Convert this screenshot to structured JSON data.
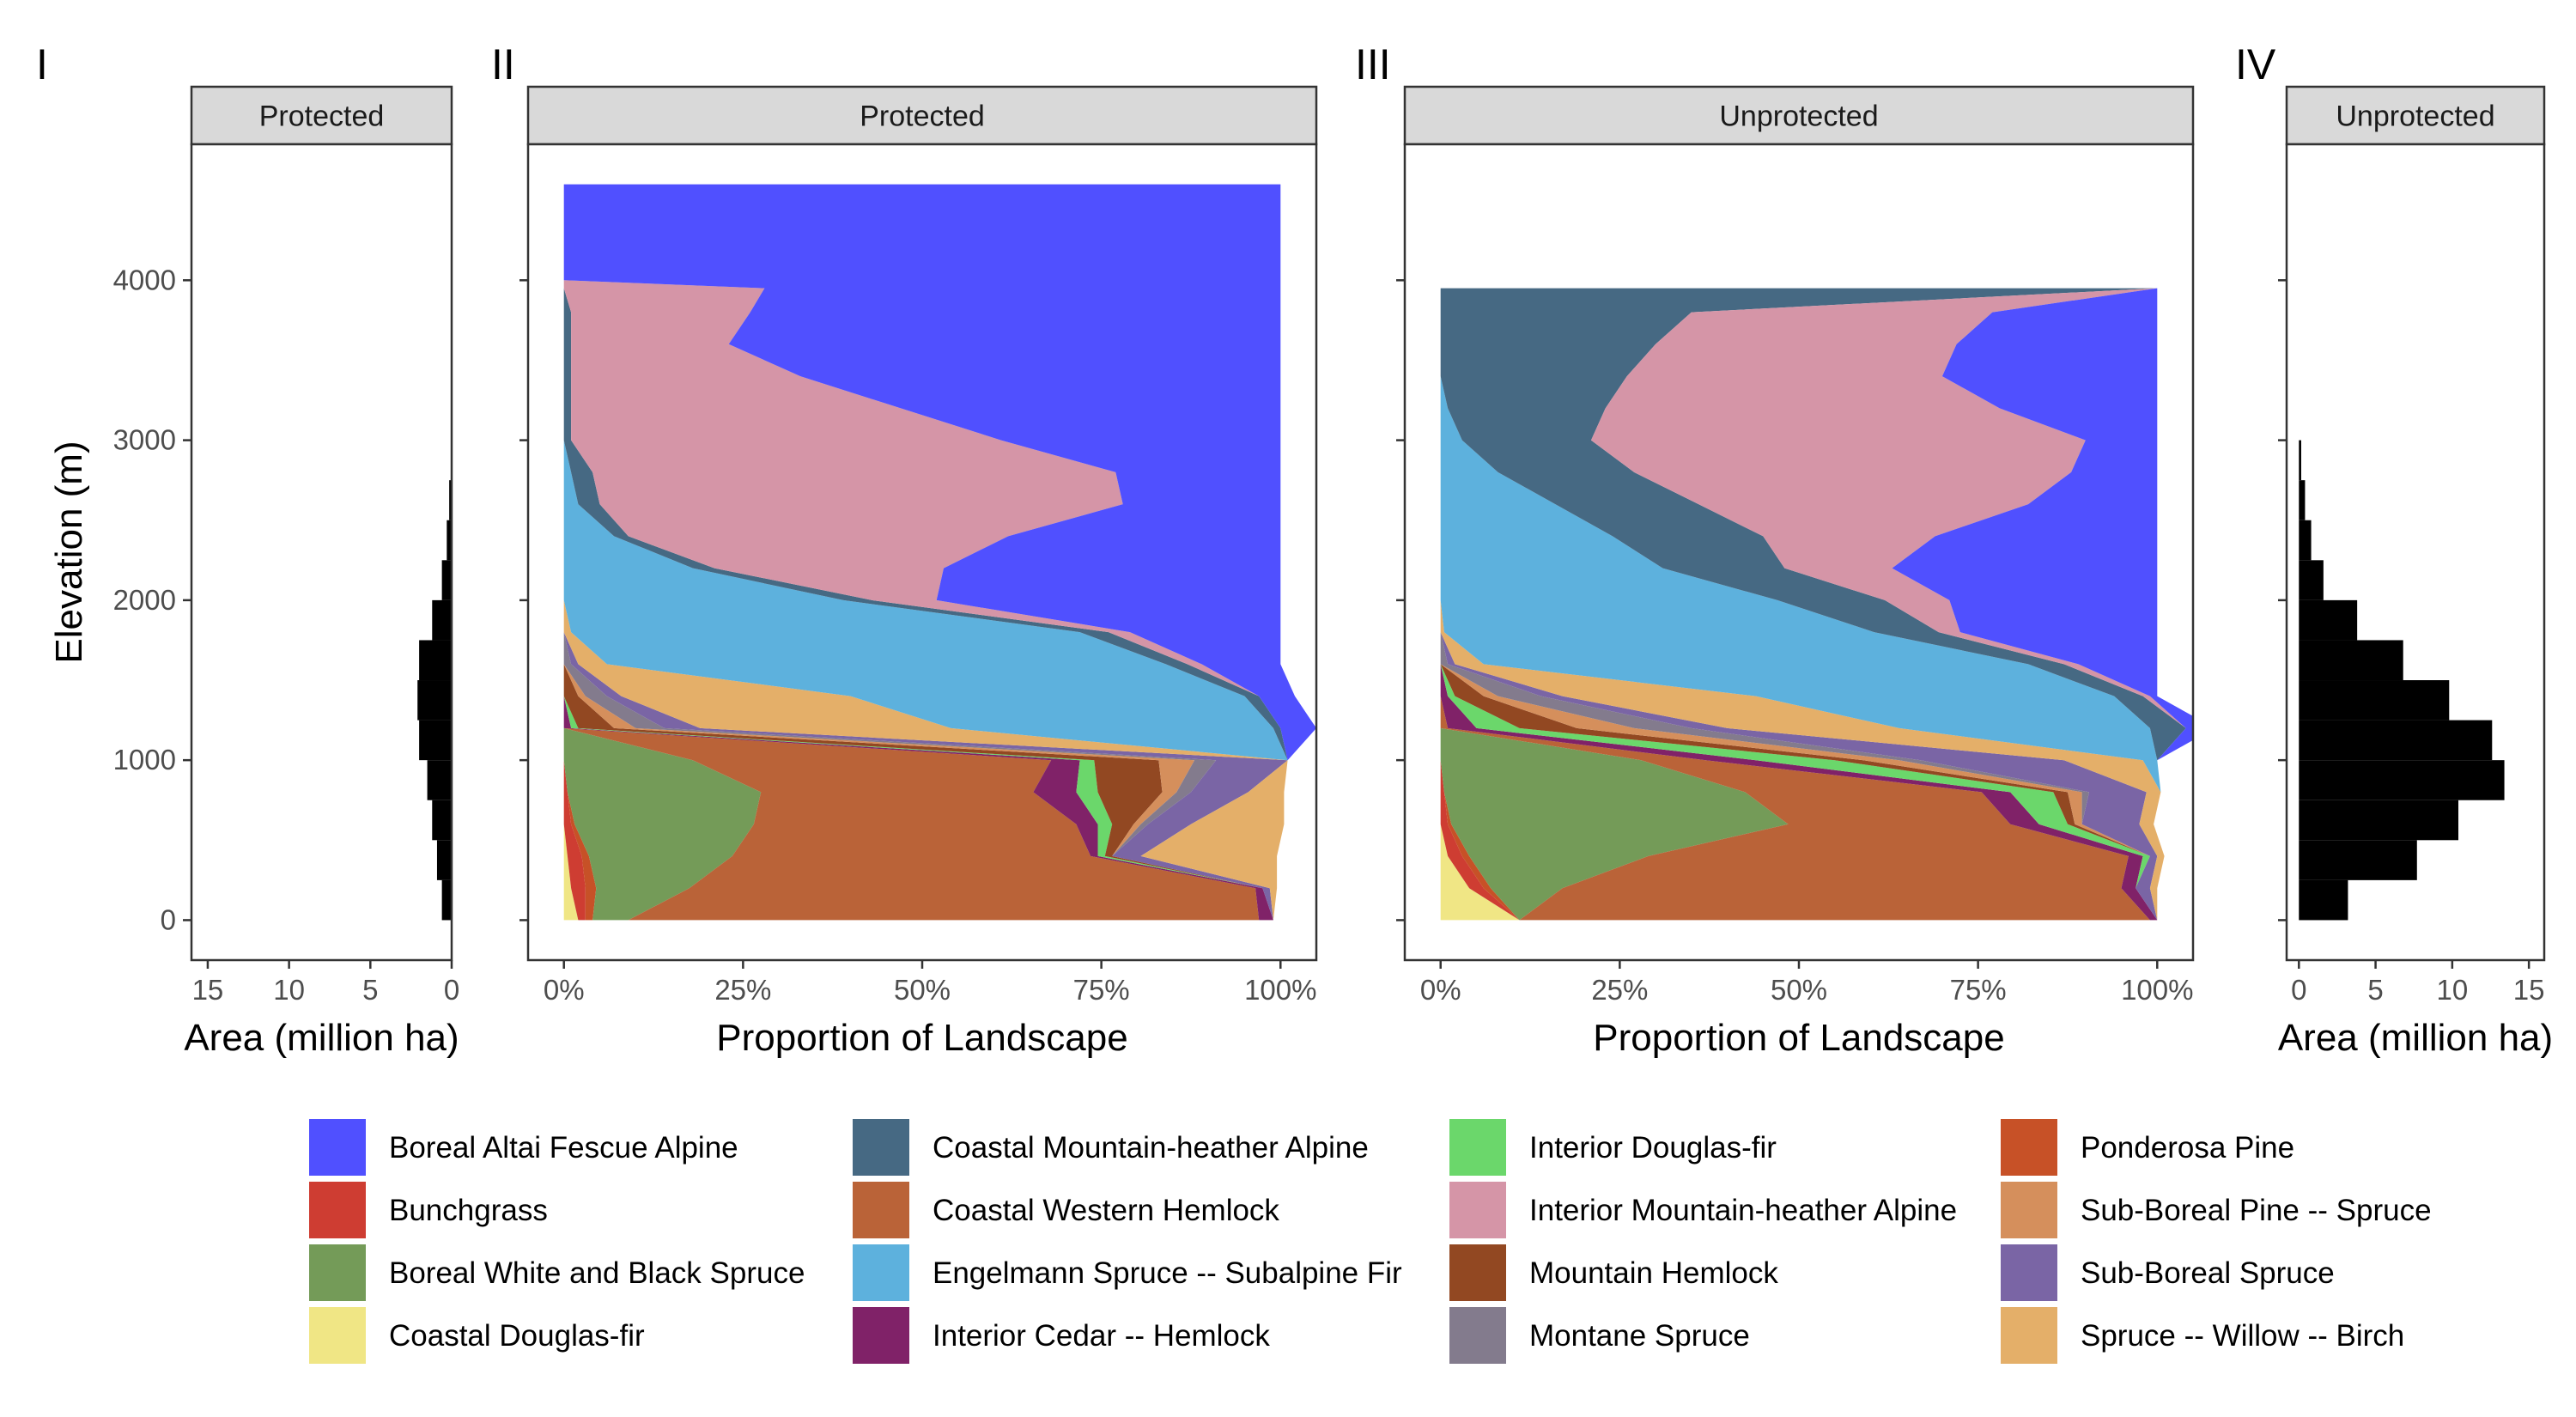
{
  "chart_data": [
    {
      "panel": "I",
      "type": "bar",
      "orientation": "horizontal",
      "strip": "Protected",
      "xlabel": "Area (million ha)",
      "ylabel": "Elevation (m)",
      "xlim": [
        16,
        0
      ],
      "ylim": [
        -250,
        4850
      ],
      "x_reversed": true,
      "xticks": [
        15,
        10,
        5,
        0
      ],
      "yticks": [
        0,
        1000,
        2000,
        3000,
        4000
      ],
      "bin_width": 250,
      "bins": [
        {
          "y": 125,
          "x": 0.6
        },
        {
          "y": 375,
          "x": 0.9
        },
        {
          "y": 625,
          "x": 1.2
        },
        {
          "y": 875,
          "x": 1.5
        },
        {
          "y": 1125,
          "x": 2.0
        },
        {
          "y": 1375,
          "x": 2.1
        },
        {
          "y": 1625,
          "x": 2.0
        },
        {
          "y": 1875,
          "x": 1.2
        },
        {
          "y": 2125,
          "x": 0.6
        },
        {
          "y": 2375,
          "x": 0.3
        },
        {
          "y": 2625,
          "x": 0.15
        },
        {
          "y": 2875,
          "x": 0.05
        }
      ]
    },
    {
      "panel": "II",
      "type": "area",
      "stacked": "fill",
      "orientation": "horizontal",
      "strip": "Protected",
      "xlabel": "Proportion of Landscape",
      "xlim": [
        -0.05,
        1.05
      ],
      "ylim": [
        -250,
        4850
      ],
      "xticks": [
        "0%",
        "25%",
        "50%",
        "75%",
        "100%"
      ],
      "elevation": [
        0,
        200,
        400,
        600,
        800,
        1000,
        1200,
        1400,
        1600,
        1800,
        2000,
        2200,
        2400,
        2600,
        2800,
        3000,
        3200,
        3400,
        3600,
        3800,
        3950,
        4000,
        4600
      ],
      "series": [
        {
          "name": "Coastal Douglas-fir",
          "values": [
            0.02,
            0.01,
            0.005,
            0,
            0,
            0,
            0,
            0,
            0,
            0,
            0,
            0,
            0,
            0,
            0,
            0,
            0,
            0,
            0,
            0,
            0,
            0,
            0
          ]
        },
        {
          "name": "Bunchgrass",
          "values": [
            0.01,
            0.02,
            0.02,
            0.01,
            0.005,
            0,
            0,
            0,
            0,
            0,
            0,
            0,
            0,
            0,
            0,
            0,
            0,
            0,
            0,
            0,
            0,
            0,
            0
          ]
        },
        {
          "name": "Ponderosa Pine",
          "values": [
            0.01,
            0.015,
            0.01,
            0.005,
            0,
            0,
            0,
            0,
            0,
            0,
            0,
            0,
            0,
            0,
            0,
            0,
            0,
            0,
            0,
            0,
            0,
            0,
            0
          ]
        },
        {
          "name": "Boreal White and Black Spruce",
          "values": [
            0.05,
            0.13,
            0.2,
            0.25,
            0.27,
            0.18,
            0,
            0,
            0,
            0,
            0,
            0,
            0,
            0,
            0,
            0,
            0,
            0,
            0,
            0,
            0,
            0,
            0
          ]
        },
        {
          "name": "Coastal Western Hemlock",
          "values": [
            0.88,
            0.79,
            0.5,
            0.45,
            0.38,
            0.5,
            0,
            0,
            0,
            0,
            0,
            0,
            0,
            0,
            0,
            0,
            0,
            0,
            0,
            0,
            0,
            0,
            0
          ]
        },
        {
          "name": "Interior Cedar -- Hemlock",
          "values": [
            0.02,
            0.01,
            0.01,
            0.03,
            0.06,
            0.04,
            0.01,
            0,
            0,
            0,
            0,
            0,
            0,
            0,
            0,
            0,
            0,
            0,
            0,
            0,
            0,
            0,
            0
          ]
        },
        {
          "name": "Interior Douglas-fir",
          "values": [
            0.0,
            0.0,
            0.01,
            0.02,
            0.03,
            0.02,
            0.01,
            0,
            0,
            0,
            0,
            0,
            0,
            0,
            0,
            0,
            0,
            0,
            0,
            0,
            0,
            0,
            0
          ]
        },
        {
          "name": "Mountain Hemlock",
          "values": [
            0.0,
            0.0,
            0.01,
            0.03,
            0.09,
            0.09,
            0.05,
            0.02,
            0,
            0,
            0,
            0,
            0,
            0,
            0,
            0,
            0,
            0,
            0,
            0,
            0,
            0,
            0
          ]
        },
        {
          "name": "Sub-Boreal Pine -- Spruce",
          "values": [
            0.0,
            0.0,
            0.0,
            0.01,
            0.02,
            0.05,
            0.03,
            0.01,
            0,
            0,
            0,
            0,
            0,
            0,
            0,
            0,
            0,
            0,
            0,
            0,
            0,
            0,
            0
          ]
        },
        {
          "name": "Montane Spruce",
          "values": [
            0.0,
            0.0,
            0.0,
            0.01,
            0.02,
            0.03,
            0.04,
            0.03,
            0.01,
            0,
            0,
            0,
            0,
            0,
            0,
            0,
            0,
            0,
            0,
            0,
            0,
            0,
            0
          ]
        },
        {
          "name": "Sub-Boreal Spruce",
          "values": [
            0.0,
            0.01,
            0.04,
            0.06,
            0.08,
            0.1,
            0.05,
            0.02,
            0.01,
            0,
            0,
            0,
            0,
            0,
            0,
            0,
            0,
            0,
            0,
            0,
            0,
            0,
            0
          ]
        },
        {
          "name": "Spruce -- Willow -- Birch",
          "values": [
            0.0,
            0.01,
            0.19,
            0.13,
            0.05,
            0.0,
            0.35,
            0.32,
            0.04,
            0.01,
            0,
            0,
            0,
            0,
            0,
            0,
            0,
            0,
            0,
            0,
            0,
            0,
            0
          ]
        },
        {
          "name": "Engelmann Spruce -- Subalpine Fir",
          "values": [
            0.0,
            0.0,
            0.0,
            0.0,
            0.0,
            0.0,
            0.45,
            0.55,
            0.78,
            0.71,
            0.39,
            0.18,
            0.07,
            0.02,
            0.01,
            0,
            0,
            0,
            0,
            0,
            0,
            0,
            0
          ]
        },
        {
          "name": "Coastal Mountain-heather Alpine",
          "values": [
            0.0,
            0.0,
            0.0,
            0.0,
            0.0,
            0.0,
            0.01,
            0.02,
            0.03,
            0.04,
            0.04,
            0.03,
            0.02,
            0.03,
            0.03,
            0.01,
            0.01,
            0.01,
            0.01,
            0.01,
            0,
            0,
            0
          ]
        },
        {
          "name": "Interior Mountain-heather Alpine",
          "values": [
            0.0,
            0.0,
            0.0,
            0.0,
            0.0,
            0.0,
            0.0,
            0.0,
            0.02,
            0.03,
            0.09,
            0.32,
            0.53,
            0.73,
            0.73,
            0.6,
            0.46,
            0.32,
            0.22,
            0.25,
            0.28,
            0,
            0
          ]
        },
        {
          "name": "Boreal Altai Fescue Alpine",
          "values": [
            0.0,
            0.0,
            0.0,
            0.0,
            0.0,
            0.0,
            0.05,
            0.05,
            0.11,
            0.21,
            0.48,
            0.47,
            0.38,
            0.22,
            0.23,
            0.39,
            0.53,
            0.67,
            0.77,
            0.74,
            0.72,
            1.0,
            1.0
          ]
        }
      ]
    },
    {
      "panel": "III",
      "type": "area",
      "stacked": "fill",
      "orientation": "horizontal",
      "strip": "Unprotected",
      "xlabel": "Proportion of Landscape",
      "xlim": [
        -0.05,
        1.05
      ],
      "ylim": [
        -250,
        4850
      ],
      "xticks": [
        "0%",
        "25%",
        "50%",
        "75%",
        "100%"
      ],
      "elevation": [
        0,
        200,
        400,
        600,
        800,
        1000,
        1200,
        1400,
        1600,
        1800,
        2000,
        2200,
        2400,
        2600,
        2800,
        3000,
        3200,
        3400,
        3600,
        3800,
        3950
      ],
      "series": [
        {
          "name": "Coastal Douglas-fir",
          "values": [
            0.11,
            0.04,
            0.01,
            0,
            0,
            0,
            0,
            0,
            0,
            0,
            0,
            0,
            0,
            0,
            0,
            0,
            0,
            0,
            0,
            0,
            0
          ]
        },
        {
          "name": "Bunchgrass",
          "values": [
            0.0,
            0.02,
            0.02,
            0.01,
            0.005,
            0,
            0,
            0,
            0,
            0,
            0,
            0,
            0,
            0,
            0,
            0,
            0,
            0,
            0,
            0,
            0
          ]
        },
        {
          "name": "Ponderosa Pine",
          "values": [
            0.0,
            0.01,
            0.01,
            0.005,
            0,
            0,
            0,
            0,
            0,
            0,
            0,
            0,
            0,
            0,
            0,
            0,
            0,
            0,
            0,
            0,
            0
          ]
        },
        {
          "name": "Boreal White and Black Spruce",
          "values": [
            0.0,
            0.1,
            0.25,
            0.47,
            0.42,
            0.28,
            0,
            0,
            0,
            0,
            0,
            0,
            0,
            0,
            0,
            0,
            0,
            0,
            0,
            0,
            0
          ]
        },
        {
          "name": "Coastal Western Hemlock",
          "values": [
            0.88,
            0.78,
            0.67,
            0.31,
            0.33,
            0.09,
            0.01,
            0,
            0,
            0,
            0,
            0,
            0,
            0,
            0,
            0,
            0,
            0,
            0,
            0,
            0
          ]
        },
        {
          "name": "Interior Cedar -- Hemlock",
          "values": [
            0.01,
            0.02,
            0.02,
            0.04,
            0.04,
            0.07,
            0.04,
            0.01,
            0,
            0,
            0,
            0,
            0,
            0,
            0,
            0,
            0,
            0,
            0,
            0,
            0
          ]
        },
        {
          "name": "Interior Douglas-fir",
          "values": [
            0.0,
            0.0,
            0.01,
            0.04,
            0.06,
            0.11,
            0.06,
            0.01,
            0,
            0,
            0,
            0,
            0,
            0,
            0,
            0,
            0,
            0,
            0,
            0,
            0
          ]
        },
        {
          "name": "Mountain Hemlock",
          "values": [
            0.0,
            0.0,
            0.0,
            0.01,
            0.02,
            0.04,
            0.08,
            0.04,
            0,
            0,
            0,
            0,
            0,
            0,
            0,
            0,
            0,
            0,
            0,
            0,
            0
          ]
        },
        {
          "name": "Sub-Boreal Pine -- Spruce",
          "values": [
            0.0,
            0.0,
            0.0,
            0.01,
            0.02,
            0.05,
            0.08,
            0.02,
            0,
            0,
            0,
            0,
            0,
            0,
            0,
            0,
            0,
            0,
            0,
            0,
            0
          ]
        },
        {
          "name": "Montane Spruce",
          "values": [
            0.0,
            0.0,
            0.0,
            0.0,
            0.01,
            0.03,
            0.08,
            0.06,
            0.01,
            0,
            0,
            0,
            0,
            0,
            0,
            0,
            0,
            0,
            0,
            0,
            0
          ]
        },
        {
          "name": "Sub-Boreal Spruce",
          "values": [
            0.0,
            0.02,
            0.01,
            0.08,
            0.08,
            0.2,
            0.05,
            0.03,
            0.01,
            0,
            0,
            0,
            0,
            0,
            0,
            0,
            0,
            0,
            0,
            0,
            0
          ]
        },
        {
          "name": "Spruce -- Willow -- Birch",
          "values": [
            0.0,
            0.01,
            0.01,
            0.02,
            0.02,
            0.11,
            0.24,
            0.27,
            0.04,
            0.005,
            0,
            0,
            0,
            0,
            0,
            0,
            0,
            0,
            0,
            0,
            0
          ]
        },
        {
          "name": "Engelmann Spruce -- Subalpine Fir",
          "values": [
            0.0,
            0.0,
            0.0,
            0.0,
            0.0,
            0.02,
            0.35,
            0.5,
            0.76,
            0.6,
            0.47,
            0.31,
            0.24,
            0.16,
            0.08,
            0.03,
            0.01,
            0,
            0,
            0,
            0
          ]
        },
        {
          "name": "Coastal Mountain-heather Alpine",
          "values": [
            0.0,
            0.0,
            0.0,
            0.0,
            0.0,
            0.0,
            0.05,
            0.04,
            0.05,
            0.09,
            0.15,
            0.17,
            0.21,
            0.2,
            0.19,
            0.18,
            0.22,
            0.26,
            0.3,
            0.35,
            1.0
          ]
        },
        {
          "name": "Interior Mountain-heather Alpine",
          "values": [
            0.0,
            0.0,
            0.0,
            0.0,
            0.0,
            0.0,
            0.0,
            0.01,
            0.02,
            0.03,
            0.09,
            0.15,
            0.24,
            0.46,
            0.61,
            0.69,
            0.55,
            0.44,
            0.42,
            0.42,
            0.0
          ]
        },
        {
          "name": "Boreal Altai Fescue Alpine",
          "values": [
            0.0,
            0.0,
            0.0,
            0.0,
            0.0,
            0.0,
            0.04,
            0.01,
            0.11,
            0.275,
            0.29,
            0.37,
            0.31,
            0.18,
            0.12,
            0.1,
            0.22,
            0.3,
            0.28,
            0.23,
            0.0
          ]
        }
      ]
    },
    {
      "panel": "IV",
      "type": "bar",
      "orientation": "horizontal",
      "strip": "Unprotected",
      "xlabel": "Area (million ha)",
      "xlim": [
        -0.8,
        16
      ],
      "ylim": [
        -250,
        4850
      ],
      "xticks": [
        0,
        5,
        10,
        15
      ],
      "bin_width": 250,
      "bins": [
        {
          "y": 125,
          "x": 3.2
        },
        {
          "y": 375,
          "x": 7.7
        },
        {
          "y": 625,
          "x": 10.4
        },
        {
          "y": 875,
          "x": 13.4
        },
        {
          "y": 1125,
          "x": 12.6
        },
        {
          "y": 1375,
          "x": 9.8
        },
        {
          "y": 1625,
          "x": 6.8
        },
        {
          "y": 1875,
          "x": 3.8
        },
        {
          "y": 2125,
          "x": 1.6
        },
        {
          "y": 2375,
          "x": 0.8
        },
        {
          "y": 2625,
          "x": 0.4
        },
        {
          "y": 2875,
          "x": 0.15
        }
      ]
    }
  ],
  "legend": [
    {
      "label": "Boreal Altai Fescue Alpine",
      "color": "#5050FF"
    },
    {
      "label": "Bunchgrass",
      "color": "#CE3D32"
    },
    {
      "label": "Boreal White and Black Spruce",
      "color": "#749B58"
    },
    {
      "label": "Coastal Douglas-fir",
      "color": "#F0E685"
    },
    {
      "label": "Coastal Mountain-heather Alpine",
      "color": "#466983"
    },
    {
      "label": "Coastal Western Hemlock",
      "color": "#BA6338"
    },
    {
      "label": "Engelmann Spruce -- Subalpine Fir",
      "color": "#5DB1DD"
    },
    {
      "label": "Interior Cedar -- Hemlock",
      "color": "#802268"
    },
    {
      "label": "Interior Douglas-fir",
      "color": "#6BD76B"
    },
    {
      "label": "Interior Mountain-heather Alpine",
      "color": "#D595A7"
    },
    {
      "label": "Mountain Hemlock",
      "color": "#924822"
    },
    {
      "label": "Montane Spruce",
      "color": "#837B8D"
    },
    {
      "label": "Ponderosa Pine",
      "color": "#C75127"
    },
    {
      "label": "Sub-Boreal Pine -- Spruce",
      "color": "#D58F5C"
    },
    {
      "label": "Sub-Boreal Spruce",
      "color": "#7A65A5"
    },
    {
      "label": "Spruce -- Willow -- Birch",
      "color": "#E4AF69"
    }
  ],
  "panel_tags": [
    "I",
    "II",
    "III",
    "IV"
  ],
  "colors": {
    "strip_fill": "#D9D9D9",
    "panel_border": "#333333",
    "bar_fill": "#000000"
  }
}
